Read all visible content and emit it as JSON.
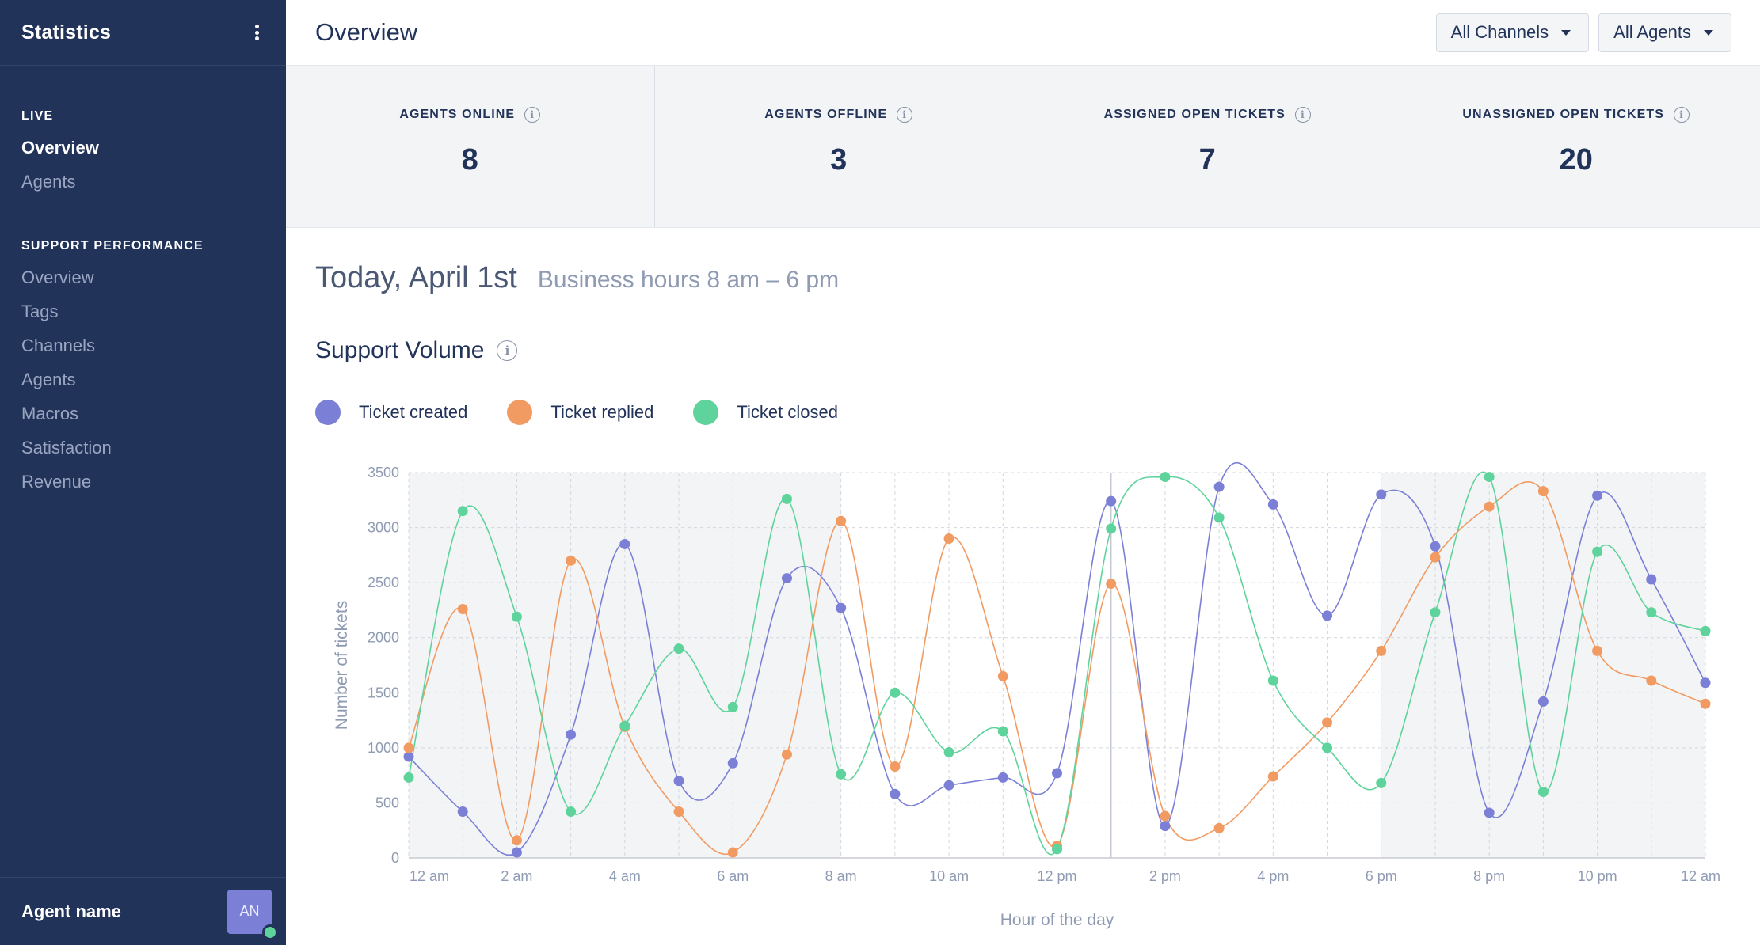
{
  "sidebar": {
    "title": "Statistics",
    "sections": [
      {
        "title": "LIVE",
        "items": [
          {
            "label": "Overview",
            "active": true
          },
          {
            "label": "Agents",
            "active": false
          }
        ]
      },
      {
        "title": "SUPPORT PERFORMANCE",
        "items": [
          {
            "label": "Overview"
          },
          {
            "label": "Tags"
          },
          {
            "label": "Channels"
          },
          {
            "label": "Agents"
          },
          {
            "label": "Macros"
          },
          {
            "label": "Satisfaction"
          },
          {
            "label": "Revenue"
          }
        ]
      }
    ],
    "footer": {
      "agent_name": "Agent name",
      "avatar_initials": "AN",
      "status_color": "#5fd39c"
    }
  },
  "header": {
    "title": "Overview",
    "filters": [
      {
        "label": "All Channels"
      },
      {
        "label": "All Agents"
      }
    ]
  },
  "stats": [
    {
      "label": "AGENTS ONLINE",
      "value": "8"
    },
    {
      "label": "AGENTS OFFLINE",
      "value": "3"
    },
    {
      "label": "ASSIGNED OPEN TICKETS",
      "value": "7"
    },
    {
      "label": "UNASSIGNED OPEN TICKETS",
      "value": "20"
    }
  ],
  "date": {
    "title": "Today, April 1st",
    "subtitle": "Business hours 8 am – 6 pm"
  },
  "support_volume": {
    "title": "Support Volume"
  },
  "chart_data": {
    "type": "line",
    "title": "",
    "xlabel": "Hour of the day",
    "ylabel": "Number of tickets",
    "ylim": [
      0,
      3500
    ],
    "yticks": [
      0,
      500,
      1000,
      1500,
      2000,
      2500,
      3000,
      3500
    ],
    "x": [
      0,
      1,
      2,
      3,
      4,
      5,
      6,
      7,
      8,
      9,
      10,
      11,
      12,
      13,
      14,
      15,
      16,
      17,
      18,
      19,
      20,
      21,
      22,
      23,
      24
    ],
    "xtick_labels": [
      "12 am",
      "2 am",
      "4 am",
      "6 am",
      "8 am",
      "10 am",
      "12 pm",
      "2 pm",
      "4 pm",
      "6 pm",
      "8 pm",
      "10 pm",
      "12 am"
    ],
    "business_hours_shading": "12 am–8 am and 6 pm–12 am shaded",
    "grid": true,
    "series": [
      {
        "name": "Ticket created",
        "color": "#7b80d6",
        "values": [
          920,
          420,
          50,
          1120,
          2850,
          700,
          860,
          2540,
          2270,
          580,
          660,
          730,
          770,
          3240,
          290,
          3370,
          3210,
          2200,
          3300,
          2830,
          410,
          1420,
          3290,
          2530,
          1590
        ]
      },
      {
        "name": "Ticket replied",
        "color": "#f19b62",
        "values": [
          1000,
          2260,
          160,
          2700,
          1190,
          420,
          50,
          940,
          3060,
          830,
          2900,
          1650,
          110,
          2490,
          380,
          270,
          740,
          1230,
          1880,
          2730,
          3190,
          3330,
          1880,
          1610,
          1400
        ]
      },
      {
        "name": "Ticket closed",
        "color": "#5fd39c",
        "values": [
          730,
          3150,
          2190,
          420,
          1200,
          1900,
          1370,
          3260,
          760,
          1500,
          960,
          1150,
          80,
          2990,
          3460,
          3090,
          1610,
          1000,
          680,
          2230,
          3460,
          600,
          2780,
          2230,
          2060
        ]
      }
    ]
  }
}
